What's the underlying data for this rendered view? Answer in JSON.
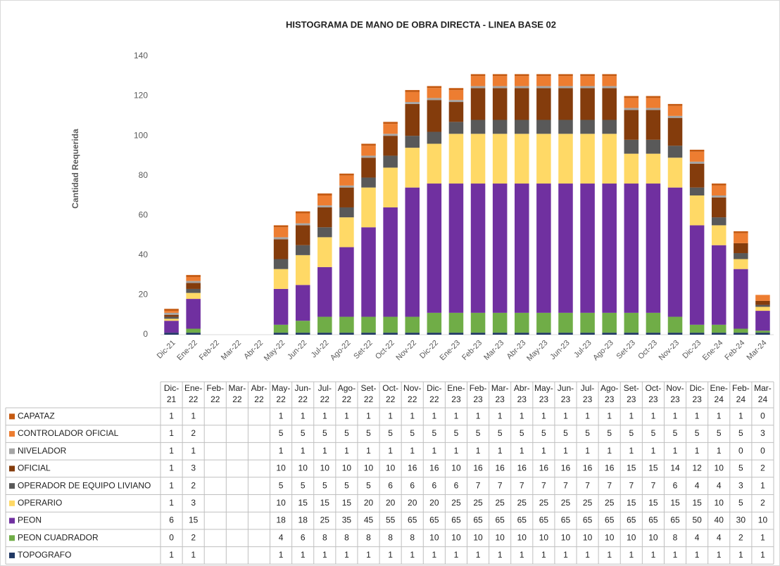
{
  "chart_data": {
    "type": "stacked_bar",
    "title": "HISTOGRAMA DE MANO DE OBRA DIRECTA -  LINEA BASE 02",
    "y_label": "Cantidad Requerida",
    "categories": [
      "Dic-21",
      "Ene-22",
      "Feb-22",
      "Mar-22",
      "Abr-22",
      "May-22",
      "Jun-22",
      "Jul-22",
      "Ago-22",
      "Set-22",
      "Oct-22",
      "Nov-22",
      "Dic-22",
      "Ene-23",
      "Feb-23",
      "Mar-23",
      "Abr-23",
      "May-23",
      "Jun-23",
      "Jul-23",
      "Ago-23",
      "Set-23",
      "Oct-23",
      "Nov-23",
      "Dic-23",
      "Ene-24",
      "Feb-24",
      "Mar-24"
    ],
    "ylim": [
      0,
      140
    ],
    "yticks": [
      0,
      20,
      40,
      60,
      80,
      100,
      120,
      140
    ],
    "grid": false,
    "series": [
      {
        "name": "CAPATAZ",
        "color": "#c55a11",
        "values": [
          1,
          1,
          null,
          null,
          null,
          1,
          1,
          1,
          1,
          1,
          1,
          1,
          1,
          1,
          1,
          1,
          1,
          1,
          1,
          1,
          1,
          1,
          1,
          1,
          1,
          1,
          1,
          0
        ]
      },
      {
        "name": "CONTROLADOR OFICIAL",
        "color": "#ed7d31",
        "values": [
          1,
          2,
          null,
          null,
          null,
          5,
          5,
          5,
          5,
          5,
          5,
          5,
          5,
          5,
          5,
          5,
          5,
          5,
          5,
          5,
          5,
          5,
          5,
          5,
          5,
          5,
          5,
          3
        ]
      },
      {
        "name": "NIVELADOR",
        "color": "#a5a5a5",
        "values": [
          1,
          1,
          null,
          null,
          null,
          1,
          1,
          1,
          1,
          1,
          1,
          1,
          1,
          1,
          1,
          1,
          1,
          1,
          1,
          1,
          1,
          1,
          1,
          1,
          1,
          1,
          0,
          0
        ]
      },
      {
        "name": "OFICIAL",
        "color": "#843c0c",
        "values": [
          1,
          3,
          null,
          null,
          null,
          10,
          10,
          10,
          10,
          10,
          10,
          16,
          16,
          10,
          16,
          16,
          16,
          16,
          16,
          16,
          16,
          15,
          15,
          14,
          12,
          10,
          5,
          2
        ]
      },
      {
        "name": "OPERADOR DE EQUIPO LIVIANO",
        "color": "#595959",
        "values": [
          1,
          2,
          null,
          null,
          null,
          5,
          5,
          5,
          5,
          5,
          6,
          6,
          6,
          6,
          7,
          7,
          7,
          7,
          7,
          7,
          7,
          7,
          7,
          6,
          4,
          4,
          3,
          1
        ]
      },
      {
        "name": "OPERARIO",
        "color": "#ffd966",
        "values": [
          1,
          3,
          null,
          null,
          null,
          10,
          15,
          15,
          15,
          20,
          20,
          20,
          20,
          25,
          25,
          25,
          25,
          25,
          25,
          25,
          25,
          15,
          15,
          15,
          15,
          10,
          5,
          2
        ]
      },
      {
        "name": "PEON",
        "color": "#7030a0",
        "values": [
          6,
          15,
          null,
          null,
          null,
          18,
          18,
          25,
          35,
          45,
          55,
          65,
          65,
          65,
          65,
          65,
          65,
          65,
          65,
          65,
          65,
          65,
          65,
          65,
          50,
          40,
          30,
          10
        ]
      },
      {
        "name": "PEON CUADRADOR",
        "color": "#70ad47",
        "values": [
          0,
          2,
          null,
          null,
          null,
          4,
          6,
          8,
          8,
          8,
          8,
          8,
          10,
          10,
          10,
          10,
          10,
          10,
          10,
          10,
          10,
          10,
          10,
          8,
          4,
          4,
          2,
          1
        ]
      },
      {
        "name": "TOPOGRAFO",
        "color": "#203864",
        "values": [
          1,
          1,
          null,
          null,
          null,
          1,
          1,
          1,
          1,
          1,
          1,
          1,
          1,
          1,
          1,
          1,
          1,
          1,
          1,
          1,
          1,
          1,
          1,
          1,
          1,
          1,
          1,
          1
        ]
      }
    ]
  }
}
